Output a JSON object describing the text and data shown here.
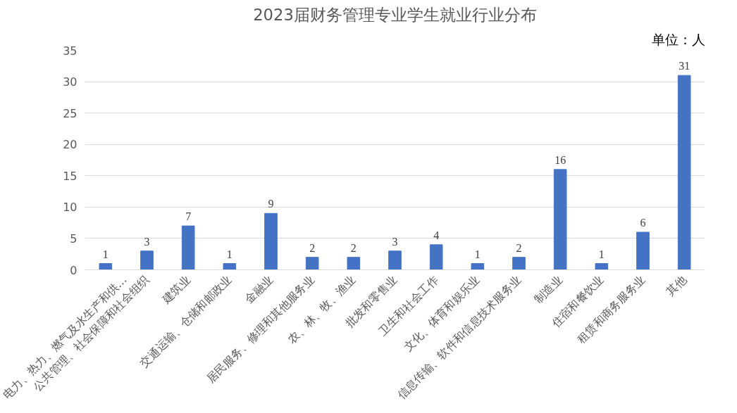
{
  "chart_data": {
    "type": "bar",
    "title": "2023届财务管理专业学生就业行业分布",
    "categories": [
      "电力、热力、燃气及水生产和供…",
      "公共管理、社会保障和社会组织",
      "建筑业",
      "交通运输、仓储和邮政业",
      "金融业",
      "居民服务、修理和其他服务业",
      "农、林、牧、渔业",
      "批发和零售业",
      "卫生和社会工作",
      "文化、体育和娱乐业",
      "信息传输、软件和信息技术服务业",
      "制造业",
      "住宿和餐饮业",
      "租赁和商务服务业",
      "其他"
    ],
    "series": [
      {
        "color": "#4472c4",
        "values": [
          1,
          3,
          7,
          1,
          9,
          2,
          2,
          3,
          4,
          1,
          2,
          16,
          1,
          6,
          31
        ]
      }
    ],
    "ylim": [
      0,
      35
    ],
    "yticks": [
      0,
      5,
      10,
      15,
      20,
      25,
      30,
      35
    ],
    "grid": "y",
    "data_labels": true,
    "annotations": [
      "单位：人"
    ]
  }
}
